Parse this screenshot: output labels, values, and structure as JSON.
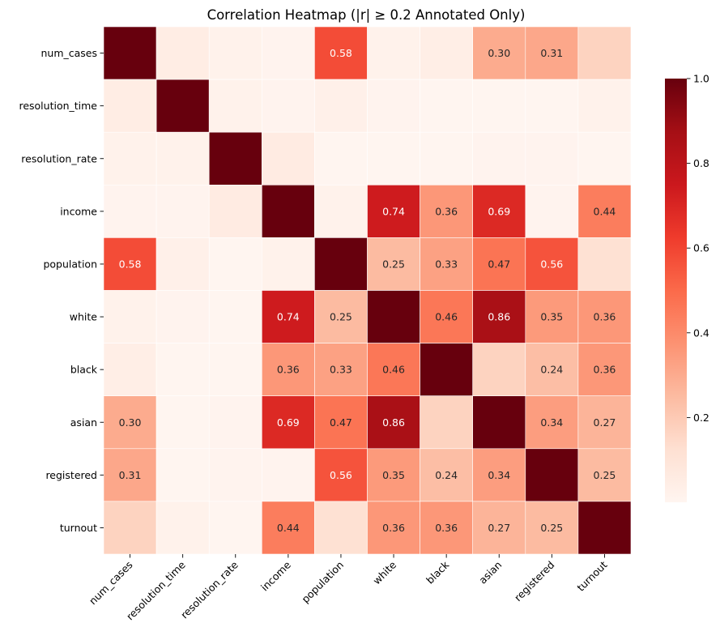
{
  "chart_data": {
    "type": "heatmap",
    "title": "Correlation Heatmap (|r| ≥ 0.2 Annotated Only)",
    "xlabel": "",
    "ylabel": "",
    "labels": [
      "num_cases",
      "resolution_time",
      "resolution_rate",
      "income",
      "population",
      "white",
      "black",
      "asian",
      "registered",
      "turnout"
    ],
    "annotation_threshold": 0.2,
    "annotation_format": "0.00",
    "matrix": [
      [
        1.0,
        0.05,
        0.02,
        0.01,
        0.58,
        0.02,
        0.04,
        0.3,
        0.31,
        0.17
      ],
      [
        0.05,
        1.0,
        0.02,
        0.01,
        0.03,
        0.01,
        0.0,
        0.0,
        0.0,
        0.02
      ],
      [
        0.02,
        0.02,
        1.0,
        0.06,
        0.0,
        0.0,
        0.0,
        0.01,
        0.01,
        0.0
      ],
      [
        0.01,
        0.01,
        0.06,
        1.0,
        0.02,
        0.74,
        0.36,
        0.69,
        0.01,
        0.44
      ],
      [
        0.58,
        0.03,
        0.0,
        0.02,
        1.0,
        0.25,
        0.33,
        0.47,
        0.56,
        0.12
      ],
      [
        0.02,
        0.01,
        0.0,
        0.74,
        0.25,
        1.0,
        0.46,
        0.86,
        0.35,
        0.36
      ],
      [
        0.04,
        0.0,
        0.0,
        0.36,
        0.33,
        0.46,
        1.0,
        0.17,
        0.24,
        0.36
      ],
      [
        0.3,
        0.0,
        0.01,
        0.69,
        0.47,
        0.86,
        0.17,
        1.0,
        0.34,
        0.27
      ],
      [
        0.31,
        0.0,
        0.01,
        0.01,
        0.56,
        0.35,
        0.24,
        0.34,
        1.0,
        0.25
      ],
      [
        0.17,
        0.02,
        0.0,
        0.44,
        0.12,
        0.36,
        0.36,
        0.27,
        0.25,
        1.0
      ]
    ],
    "colorbar": {
      "colormap": "Reds",
      "vmin": 0.0,
      "vmax": 1.0,
      "ticks": [
        0.2,
        0.4,
        0.6,
        0.8,
        1.0
      ],
      "tick_labels": [
        "0.2",
        "0.4",
        "0.6",
        "0.8",
        "1.0"
      ]
    },
    "colors": {
      "cell_border": "#ffffff",
      "annot_light": "#ffffff",
      "annot_dark": "#262626"
    }
  }
}
